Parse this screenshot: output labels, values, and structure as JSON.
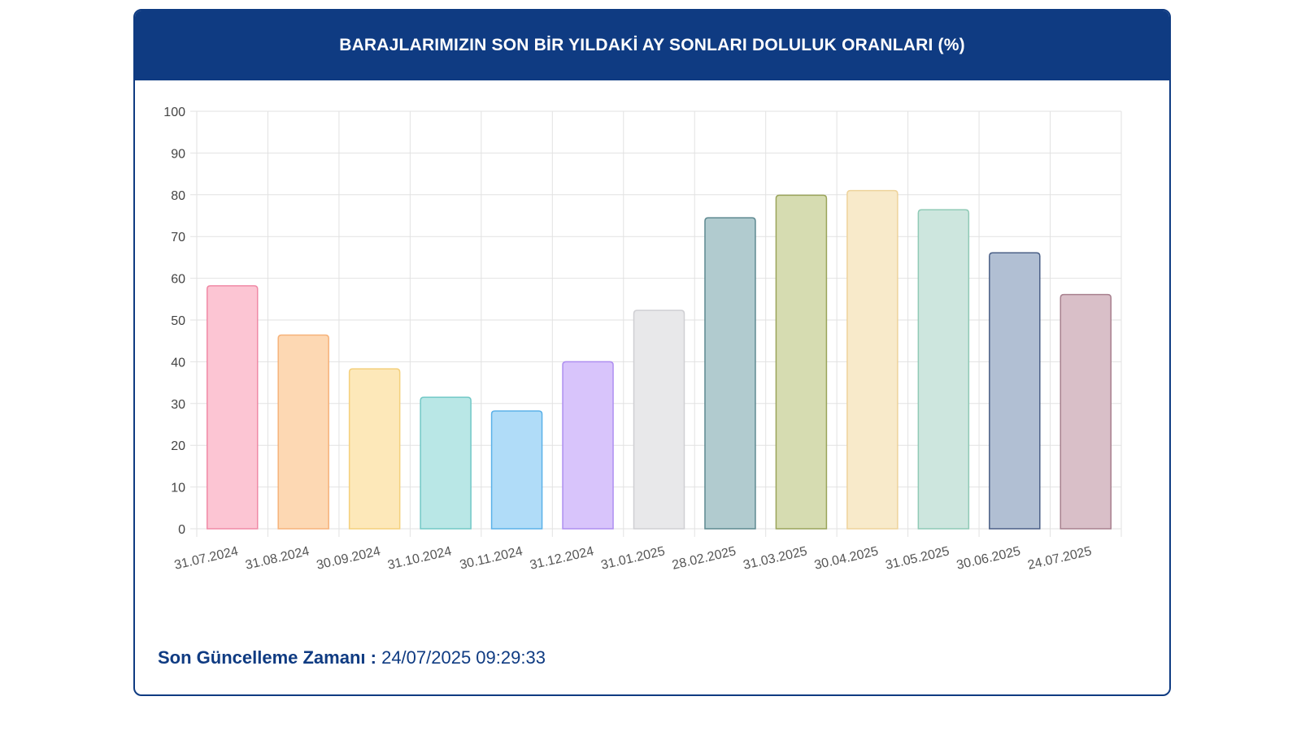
{
  "header": {
    "title": "BARAJLARIMIZIN SON BİR YILDAKİ AY SONLARI DOLULUK ORANLARI (%)"
  },
  "footer": {
    "label": "Son Güncelleme Zamanı :",
    "value": "24/07/2025 09:29:33"
  },
  "chart_data": {
    "type": "bar",
    "title": "BARAJLARIMIZIN SON BİR YILDAKİ AY SONLARI DOLULUK ORANLARI (%)",
    "xlabel": "",
    "ylabel": "",
    "ylim": [
      0,
      100
    ],
    "yticks": [
      0,
      10,
      20,
      30,
      40,
      50,
      60,
      70,
      80,
      90,
      100
    ],
    "grid": true,
    "legend": "none",
    "categories": [
      "31.07.2024",
      "31.08.2024",
      "30.09.2024",
      "31.10.2024",
      "30.11.2024",
      "31.12.2024",
      "31.01.2025",
      "28.02.2025",
      "31.03.2025",
      "30.04.2025",
      "31.05.2025",
      "30.06.2025",
      "24.07.2025"
    ],
    "values": [
      58.2,
      46.4,
      38.3,
      31.5,
      28.2,
      40.0,
      52.3,
      74.5,
      79.9,
      81.0,
      76.4,
      66.1,
      56.1
    ],
    "colors": [
      "#fcc5d3",
      "#fdd8b3",
      "#fde8b9",
      "#b9e7e6",
      "#b0dcf8",
      "#d8c4fb",
      "#e8e8ea",
      "#b1cbcf",
      "#d6dcb1",
      "#f8eaca",
      "#cde6de",
      "#b1bfd3",
      "#d9bfc8"
    ],
    "border_colors": [
      "#f08aa6",
      "#f6b27a",
      "#f4d07c",
      "#72c8c6",
      "#5bb1e8",
      "#ae8ef0",
      "#cfcfd3",
      "#5e8991",
      "#9aa45b",
      "#eed39b",
      "#8fcab6",
      "#4a5f86",
      "#a8818f"
    ]
  }
}
